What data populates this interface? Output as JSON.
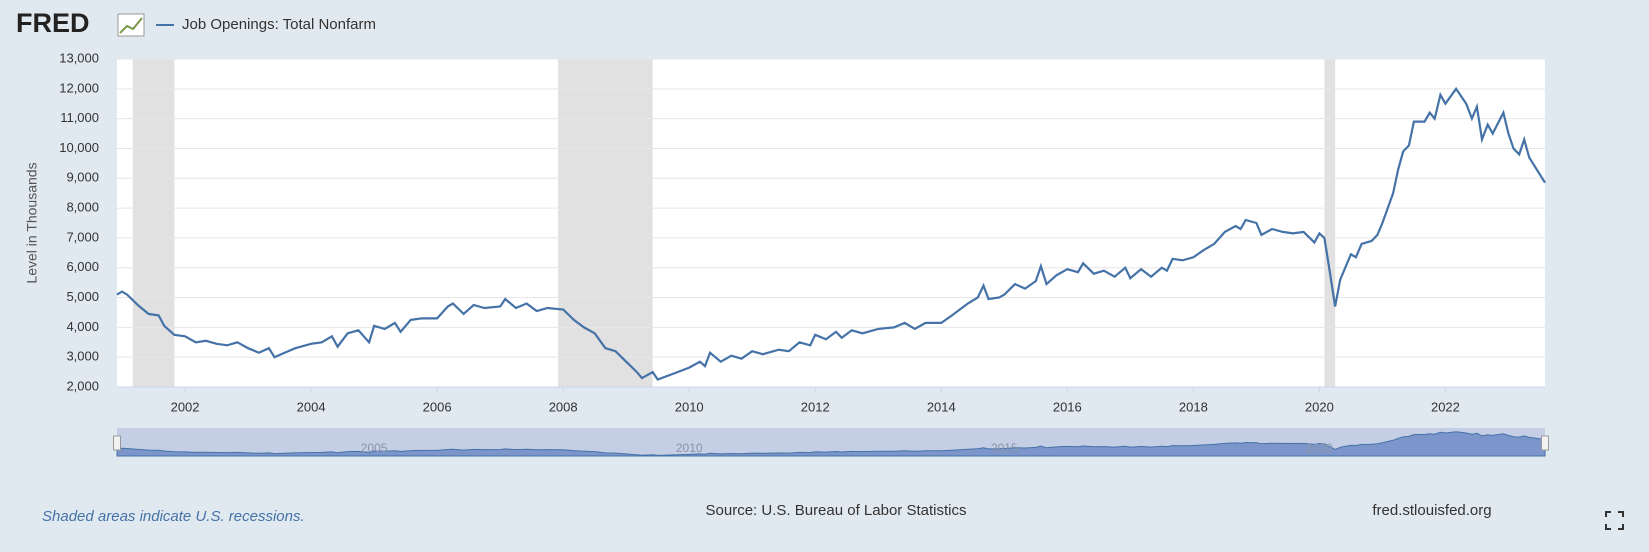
{
  "header": {
    "logo": "FRED"
  },
  "chart_data": {
    "type": "line",
    "y_label": "Level in Thousands",
    "xlim": [
      2000.92,
      2023.58
    ],
    "xticks": [
      2002,
      2004,
      2006,
      2008,
      2010,
      2012,
      2014,
      2016,
      2018,
      2020,
      2022
    ],
    "ylim": [
      2000,
      13000
    ],
    "yticks": [
      {
        "value": 2000,
        "label": "2,000"
      },
      {
        "value": 3000,
        "label": "3,000"
      },
      {
        "value": 4000,
        "label": "4,000"
      },
      {
        "value": 5000,
        "label": "5,000"
      },
      {
        "value": 6000,
        "label": "6,000"
      },
      {
        "value": 7000,
        "label": "7,000"
      },
      {
        "value": 8000,
        "label": "8,000"
      },
      {
        "value": 9000,
        "label": "9,000"
      },
      {
        "value": 10000,
        "label": "10,000"
      },
      {
        "value": 11000,
        "label": "11,000"
      },
      {
        "value": 12000,
        "label": "12,000"
      },
      {
        "value": 13000,
        "label": "13,000"
      }
    ],
    "grid": true,
    "recessions": [
      [
        2001.17,
        2001.83
      ],
      [
        2007.92,
        2009.42
      ],
      [
        2020.08,
        2020.25
      ]
    ],
    "navigator_xticks": [
      2005,
      2010,
      2015,
      2020
    ],
    "x": [
      2000.92,
      2001.0,
      2001.08,
      2001.25,
      2001.42,
      2001.58,
      2001.67,
      2001.83,
      2002.0,
      2002.17,
      2002.33,
      2002.5,
      2002.67,
      2002.83,
      2003.0,
      2003.17,
      2003.33,
      2003.42,
      2003.58,
      2003.75,
      2004.0,
      2004.17,
      2004.33,
      2004.42,
      2004.58,
      2004.75,
      2004.92,
      2005.0,
      2005.17,
      2005.33,
      2005.42,
      2005.58,
      2005.75,
      2006.0,
      2006.17,
      2006.25,
      2006.42,
      2006.58,
      2006.75,
      2007.0,
      2007.08,
      2007.25,
      2007.42,
      2007.58,
      2007.75,
      2008.0,
      2008.17,
      2008.33,
      2008.5,
      2008.67,
      2008.83,
      2009.0,
      2009.17,
      2009.25,
      2009.42,
      2009.5,
      2009.75,
      2010.0,
      2010.17,
      2010.25,
      2010.33,
      2010.5,
      2010.67,
      2010.83,
      2011.0,
      2011.17,
      2011.42,
      2011.58,
      2011.75,
      2011.92,
      2012.0,
      2012.17,
      2012.33,
      2012.42,
      2012.58,
      2012.75,
      2013.0,
      2013.25,
      2013.42,
      2013.58,
      2013.75,
      2014.0,
      2014.17,
      2014.42,
      2014.58,
      2014.67,
      2014.75,
      2014.92,
      2015.0,
      2015.17,
      2015.33,
      2015.5,
      2015.58,
      2015.67,
      2015.83,
      2016.0,
      2016.17,
      2016.25,
      2016.42,
      2016.58,
      2016.75,
      2016.92,
      2017.0,
      2017.17,
      2017.33,
      2017.5,
      2017.58,
      2017.67,
      2017.83,
      2018.0,
      2018.17,
      2018.33,
      2018.5,
      2018.67,
      2018.75,
      2018.83,
      2019.0,
      2019.08,
      2019.25,
      2019.42,
      2019.58,
      2019.75,
      2019.92,
      2020.0,
      2020.08,
      2020.17,
      2020.25,
      2020.33,
      2020.5,
      2020.58,
      2020.67,
      2020.83,
      2020.92,
      2021.0,
      2021.17,
      2021.25,
      2021.33,
      2021.42,
      2021.5,
      2021.67,
      2021.75,
      2021.83,
      2021.92,
      2022.0,
      2022.17,
      2022.33,
      2022.42,
      2022.5,
      2022.58,
      2022.67,
      2022.75,
      2022.92,
      2023.0,
      2023.08,
      2023.17,
      2023.25,
      2023.33,
      2023.58
    ],
    "series": [
      {
        "name": "Job Openings: Total Nonfarm",
        "color": "#4572a7",
        "values": [
          5100,
          5200,
          5100,
          4750,
          4450,
          4400,
          4050,
          3750,
          3700,
          3500,
          3550,
          3450,
          3400,
          3500,
          3300,
          3150,
          3300,
          3000,
          3150,
          3300,
          3450,
          3500,
          3700,
          3350,
          3800,
          3900,
          3500,
          4050,
          3950,
          4150,
          3850,
          4250,
          4300,
          4300,
          4700,
          4800,
          4450,
          4750,
          4650,
          4700,
          4950,
          4650,
          4800,
          4550,
          4650,
          4600,
          4250,
          4000,
          3800,
          3300,
          3200,
          2850,
          2500,
          2300,
          2500,
          2250,
          2450,
          2650,
          2850,
          2700,
          3150,
          2850,
          3050,
          2950,
          3200,
          3100,
          3250,
          3200,
          3500,
          3400,
          3750,
          3600,
          3850,
          3650,
          3900,
          3800,
          3950,
          4000,
          4150,
          3950,
          4150,
          4150,
          4400,
          4800,
          5000,
          5400,
          4950,
          5000,
          5100,
          5450,
          5300,
          5550,
          6050,
          5450,
          5750,
          5950,
          5850,
          6150,
          5800,
          5900,
          5700,
          6000,
          5650,
          5950,
          5700,
          6000,
          5900,
          6300,
          6250,
          6350,
          6600,
          6800,
          7200,
          7400,
          7300,
          7600,
          7500,
          7100,
          7300,
          7200,
          7150,
          7200,
          6850,
          7150,
          7000,
          5800,
          4700,
          5600,
          6450,
          6350,
          6800,
          6900,
          7100,
          7500,
          8500,
          9300,
          9900,
          10100,
          10900,
          10900,
          11200,
          11000,
          11800,
          11500,
          12000,
          11500,
          11000,
          11400,
          10300,
          10800,
          10500,
          11200,
          10500,
          10000,
          9800,
          10300,
          9700,
          8850
        ]
      }
    ]
  },
  "footer": {
    "note": "Shaded areas indicate U.S. recessions.",
    "source": "Source: U.S. Bureau of Labor Statistics",
    "site": "fred.stlouisfed.org"
  }
}
